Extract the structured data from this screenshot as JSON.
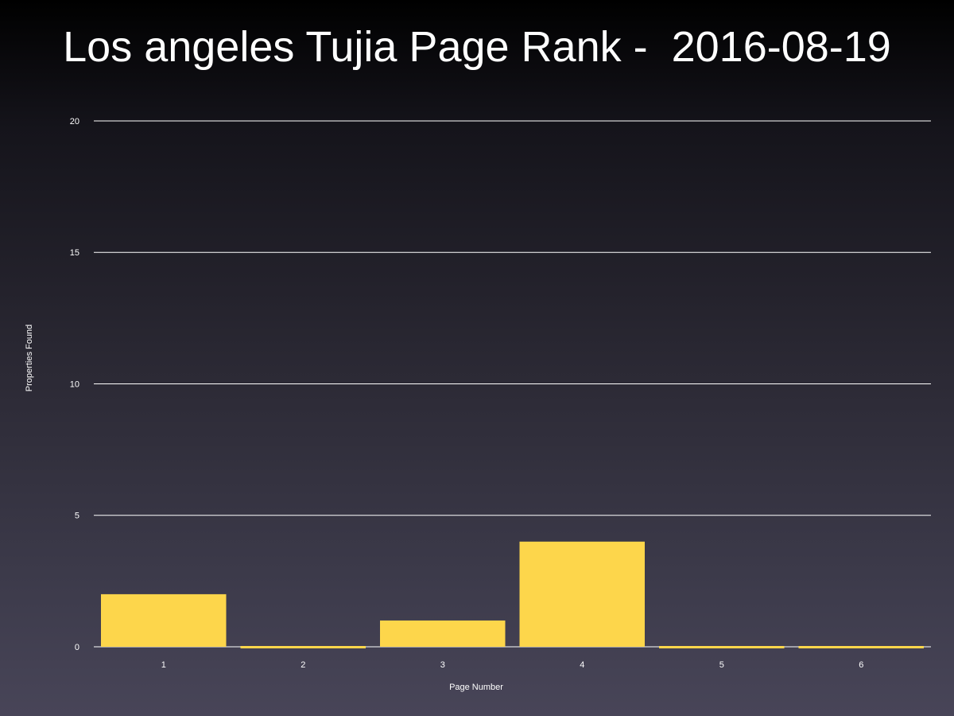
{
  "chart_data": {
    "type": "bar",
    "title": "Los angeles Tujia Page Rank -  2016-08-19",
    "xlabel": "Page Number",
    "ylabel": "Properties Found",
    "categories": [
      "1",
      "2",
      "3",
      "4",
      "5",
      "6"
    ],
    "values": [
      2,
      0,
      1,
      4,
      0,
      0
    ],
    "ylim": [
      0,
      20
    ],
    "yticks": [
      "0",
      "5",
      "10",
      "15",
      "20"
    ],
    "grid": true,
    "bar_color": "#fdd64b",
    "grid_color": "#ffffff"
  }
}
